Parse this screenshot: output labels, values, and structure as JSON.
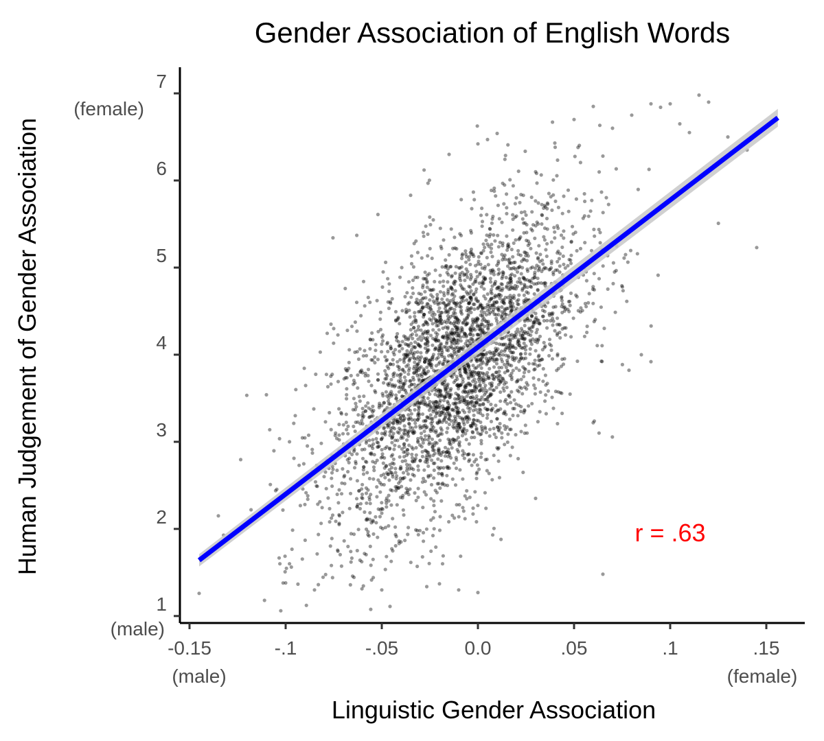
{
  "chart_data": {
    "type": "scatter",
    "title": "Gender Association of English Words",
    "xlabel": "Linguistic Gender Association",
    "ylabel": "Human Judgement of Gender Association",
    "xlim": [
      -0.155,
      0.17
    ],
    "ylim": [
      0.92,
      7.3
    ],
    "x_ticks": [
      {
        "value": -0.15,
        "label": "-0.15"
      },
      {
        "value": -0.1,
        "label": "-.1"
      },
      {
        "value": -0.05,
        "label": "-.05"
      },
      {
        "value": 0.0,
        "label": "0.0"
      },
      {
        "value": 0.05,
        "label": ".05"
      },
      {
        "value": 0.1,
        "label": ".1"
      },
      {
        "value": 0.15,
        "label": ".15"
      }
    ],
    "y_ticks": [
      {
        "value": 1,
        "label": "1"
      },
      {
        "value": 2,
        "label": "2"
      },
      {
        "value": 3,
        "label": "3"
      },
      {
        "value": 4,
        "label": "4"
      },
      {
        "value": 5,
        "label": "5"
      },
      {
        "value": 6,
        "label": "6"
      },
      {
        "value": 7,
        "label": "7"
      }
    ],
    "x_end_labels": {
      "low": "(male)",
      "high": "(female)"
    },
    "y_end_labels": {
      "low": "(male)",
      "high": "(female)"
    },
    "annotation": {
      "text": "r = .63",
      "x": 0.1,
      "y": 1.95,
      "color": "#ff0000"
    },
    "fit_line": {
      "x": [
        -0.145,
        0.156
      ],
      "y": [
        1.64,
        6.72
      ],
      "color": "#0000ff",
      "band_color": "#c8c8c8"
    },
    "point_color": "#000000",
    "point_opacity": 0.4,
    "points": {
      "x": [
        -0.145,
        -0.135,
        -0.118,
        -0.111,
        -0.11,
        -0.103,
        -0.1,
        -0.098,
        -0.095,
        -0.1,
        -0.09,
        -0.085,
        -0.083,
        -0.082,
        -0.08,
        -0.075,
        -0.072,
        -0.069,
        -0.066,
        -0.063,
        -0.06,
        -0.052,
        -0.05,
        -0.048,
        -0.04,
        -0.035,
        -0.028,
        -0.02,
        -0.015,
        -0.01,
        0.0,
        0.005,
        0.01,
        0.02,
        0.03,
        0.04,
        0.05,
        0.06,
        0.065,
        0.07,
        0.08,
        0.09,
        0.095,
        0.1,
        0.105,
        0.11,
        0.115,
        0.12,
        0.13,
        0.14,
        0.145,
        0.0,
        0.065,
        0.085,
        0.09,
        0.063,
        0.03,
        0.012,
        -0.098,
        -0.093
      ],
      "y": [
        1.26,
        2.15,
        2.22,
        1.18,
        3.54,
        1.6,
        2.4,
        1.6,
        3.3,
        1.38,
        2.28,
        1.3,
        1.36,
        4.03,
        2.6,
        4.3,
        2.15,
        4.76,
        1.62,
        5.37,
        2.35,
        5.61,
        1.3,
        5.06,
        1.85,
        5.83,
        6.12,
        1.37,
        6.3,
        1.3,
        6.42,
        6.47,
        6.54,
        5.8,
        6.1,
        6.43,
        6.7,
        6.85,
        6.28,
        6.6,
        6.75,
        6.88,
        6.84,
        6.88,
        6.65,
        6.55,
        6.98,
        6.9,
        6.5,
        6.35,
        5.23,
        1.27,
        1.48,
        4.0,
        3.92,
        3.1,
        2.35,
        1.88,
        3.0,
        2.73
      ]
    }
  }
}
